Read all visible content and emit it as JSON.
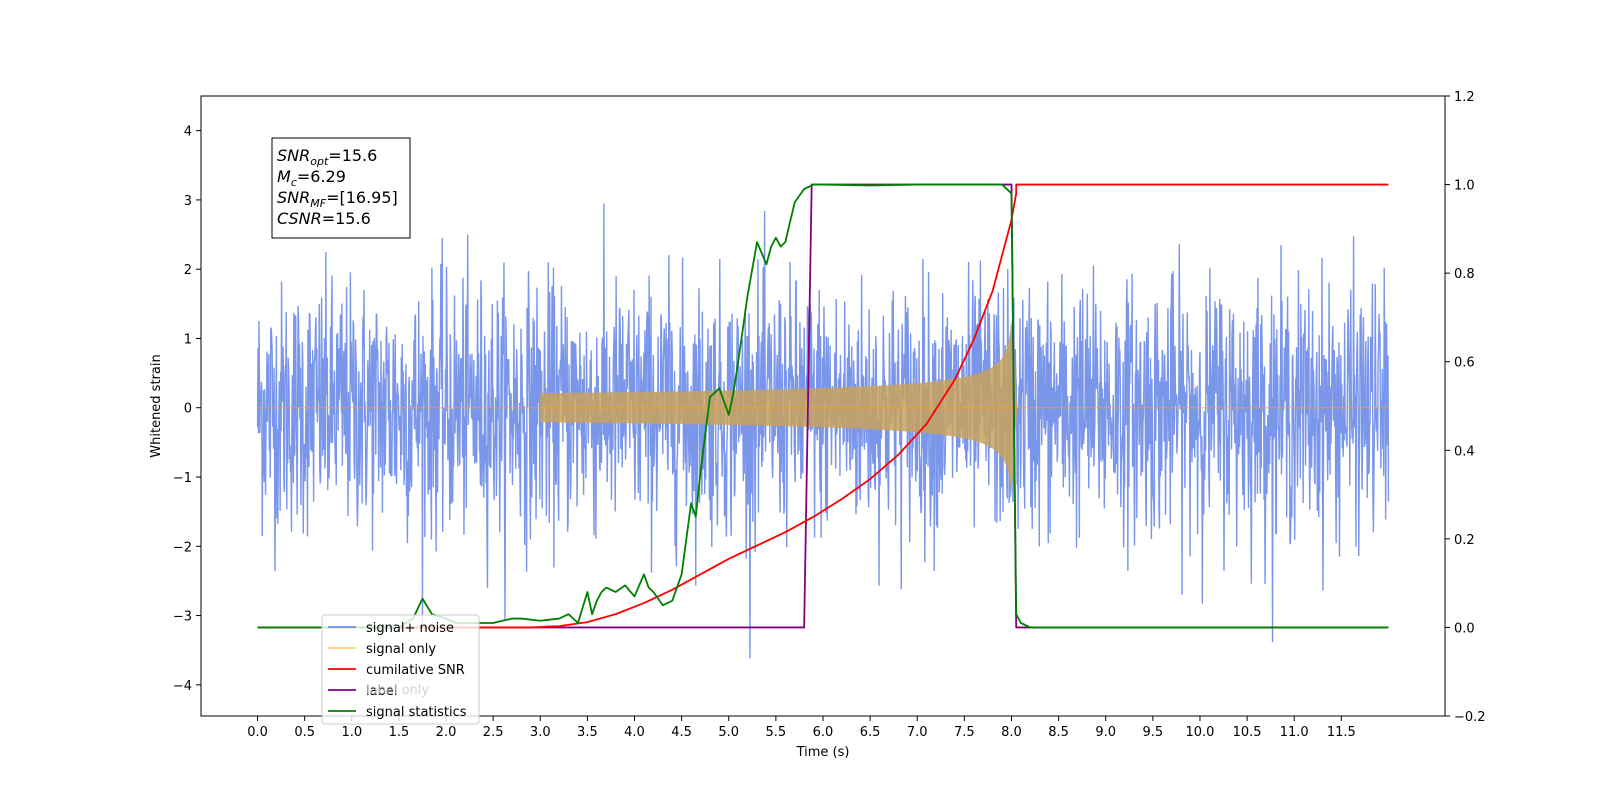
{
  "chart_data": {
    "type": "line",
    "title": "",
    "xlabel": "Time (s)",
    "ylabel": "Whitened strain",
    "y2label": "",
    "xlim": [
      -0.6,
      12.6
    ],
    "ylim": [
      -4.45,
      4.5
    ],
    "y2lim": [
      -0.2,
      1.2
    ],
    "grid": false,
    "legend_position": "lower-left",
    "x_ticks": [
      "0.0",
      "0.5",
      "1.0",
      "1.5",
      "2.0",
      "2.5",
      "3.0",
      "3.5",
      "4.0",
      "4.5",
      "5.0",
      "5.5",
      "6.0",
      "6.5",
      "7.0",
      "7.5",
      "8.0",
      "8.5",
      "9.0",
      "9.5",
      "10.0",
      "10.5",
      "11.0",
      "11.5"
    ],
    "y_ticks": [
      "4",
      "3",
      "2",
      "1",
      "0",
      "−1",
      "−2",
      "−3",
      "−4"
    ],
    "y_tick_values": [
      4,
      3,
      2,
      1,
      0,
      -1,
      -2,
      -3,
      -4
    ],
    "y2_ticks": [
      "1.2",
      "1.0",
      "0.8",
      "0.6",
      "0.4",
      "0.2",
      "0.0",
      "−0.2"
    ],
    "y2_tick_values": [
      1.2,
      1.0,
      0.8,
      0.6,
      0.4,
      0.2,
      0.0,
      -0.2
    ],
    "annotation": {
      "lines": [
        {
          "base": "SNR",
          "sub": "opt",
          "rest": "=15.6"
        },
        {
          "base": "M",
          "sub": "c",
          "rest": "=6.29"
        },
        {
          "base": "SNR",
          "sub": "MF",
          "rest": "=[16.95]"
        },
        {
          "base": "CSNR",
          "sub": "",
          "rest": "=15.6"
        }
      ]
    },
    "series": [
      {
        "name": "signal+ noise",
        "axis": "left",
        "color": "#4169e1",
        "kind": "noise",
        "x_range": [
          0.0,
          12.0
        ],
        "amplitude_std": 0.9,
        "envelope_max": 4.12,
        "envelope_min": -4.02
      },
      {
        "name": "signal only",
        "axis": "left",
        "color": "#ffa500",
        "kind": "chirp",
        "start": 3.0,
        "merger": 8.0,
        "peak_amplitude": 1.3,
        "after_merger": 0.0
      },
      {
        "name": "cumilative SNR",
        "axis": "right",
        "color": "#ff0000",
        "x": [
          0.0,
          2.9,
          3.2,
          3.5,
          3.8,
          4.1,
          4.4,
          4.7,
          5.0,
          5.3,
          5.6,
          5.9,
          6.2,
          6.5,
          6.8,
          7.1,
          7.4,
          7.6,
          7.8,
          7.9,
          8.0,
          8.05,
          8.05,
          12.0
        ],
        "y": [
          0.0,
          0.0,
          0.003,
          0.012,
          0.03,
          0.055,
          0.085,
          0.12,
          0.155,
          0.185,
          0.215,
          0.25,
          0.29,
          0.335,
          0.39,
          0.46,
          0.56,
          0.65,
          0.76,
          0.84,
          0.92,
          0.98,
          1.0,
          1.0
        ]
      },
      {
        "name": "label only",
        "axis": "right",
        "color": "#ffffff",
        "x": [],
        "y": []
      },
      {
        "name": "label",
        "axis": "right",
        "color": "#800080",
        "x": [
          0.0,
          5.8,
          5.88,
          8.0,
          8.05,
          12.0
        ],
        "y": [
          0.0,
          0.0,
          1.0,
          1.0,
          0.0,
          0.0
        ]
      },
      {
        "name": "signal statistics",
        "axis": "right",
        "color": "#008000",
        "x": [
          0.0,
          1.5,
          1.65,
          1.75,
          1.85,
          2.0,
          2.1,
          2.3,
          2.5,
          2.6,
          2.7,
          2.8,
          3.0,
          3.2,
          3.3,
          3.4,
          3.5,
          3.55,
          3.6,
          3.65,
          3.7,
          3.8,
          3.9,
          4.0,
          4.1,
          4.15,
          4.2,
          4.3,
          4.4,
          4.5,
          4.6,
          4.65,
          4.7,
          4.8,
          4.9,
          5.0,
          5.05,
          5.1,
          5.2,
          5.3,
          5.4,
          5.45,
          5.5,
          5.55,
          5.6,
          5.7,
          5.8,
          5.9,
          6.0,
          6.5,
          7.0,
          7.5,
          7.9,
          8.0,
          8.05,
          8.1,
          8.2,
          12.0
        ],
        "y": [
          0.0,
          0.0,
          0.02,
          0.065,
          0.03,
          0.02,
          0.01,
          0.01,
          0.01,
          0.015,
          0.02,
          0.02,
          0.015,
          0.02,
          0.03,
          0.01,
          0.08,
          0.03,
          0.06,
          0.08,
          0.09,
          0.08,
          0.095,
          0.07,
          0.12,
          0.09,
          0.08,
          0.05,
          0.06,
          0.12,
          0.28,
          0.25,
          0.35,
          0.52,
          0.54,
          0.48,
          0.53,
          0.6,
          0.75,
          0.87,
          0.82,
          0.86,
          0.88,
          0.86,
          0.87,
          0.96,
          0.99,
          1.0,
          1.0,
          0.998,
          1.0,
          1.0,
          1.0,
          0.98,
          0.03,
          0.01,
          0.0,
          0.0
        ]
      }
    ]
  }
}
